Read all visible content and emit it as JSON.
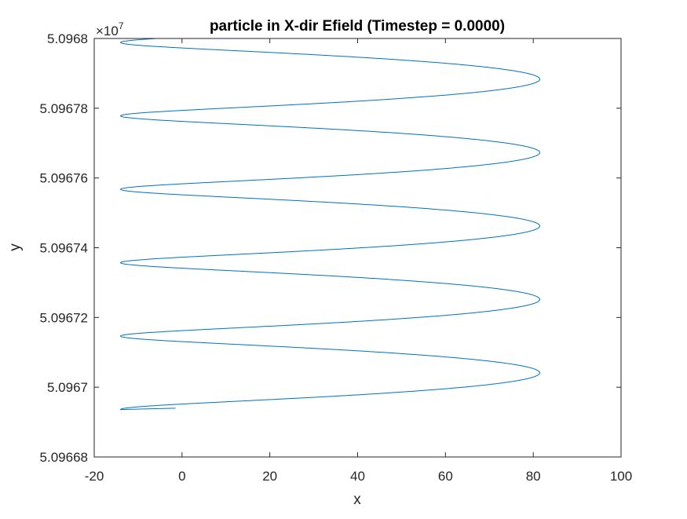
{
  "chart_data": {
    "type": "line",
    "title": "particle in X-dir Efield (Timestep = 0.0000)",
    "xlabel": "x",
    "ylabel": "y",
    "y_exponent_base": "×10",
    "y_exponent_power": "7",
    "xlim": [
      -20,
      100
    ],
    "ylim": [
      5.09668,
      5.0968
    ],
    "x_ticks": [
      -20,
      0,
      20,
      40,
      60,
      80,
      100
    ],
    "x_tick_labels": [
      "-20",
      "0",
      "20",
      "40",
      "60",
      "80",
      "100"
    ],
    "y_ticks": [
      5.09668,
      5.0967,
      5.09672,
      5.09674,
      5.09676,
      5.09678,
      5.0968
    ],
    "y_tick_labels": [
      "5.09668",
      "5.0967",
      "5.09672",
      "5.09674",
      "5.09676",
      "5.09678",
      "5.0968"
    ],
    "grid": false,
    "box": true,
    "series": [
      {
        "color": "#0072bd",
        "start": {
          "x": -1.5,
          "y": 5.096694
        },
        "loops": 5,
        "x_min": -14,
        "x_max": 81.5,
        "x_center": 33.75,
        "y_step": 2.105e-05,
        "y_amplitude": 1.5e-06,
        "end_y": 5.0968
      }
    ]
  },
  "colors": {
    "line": "#0072bd",
    "axes": "#262626",
    "background": "#ffffff"
  }
}
